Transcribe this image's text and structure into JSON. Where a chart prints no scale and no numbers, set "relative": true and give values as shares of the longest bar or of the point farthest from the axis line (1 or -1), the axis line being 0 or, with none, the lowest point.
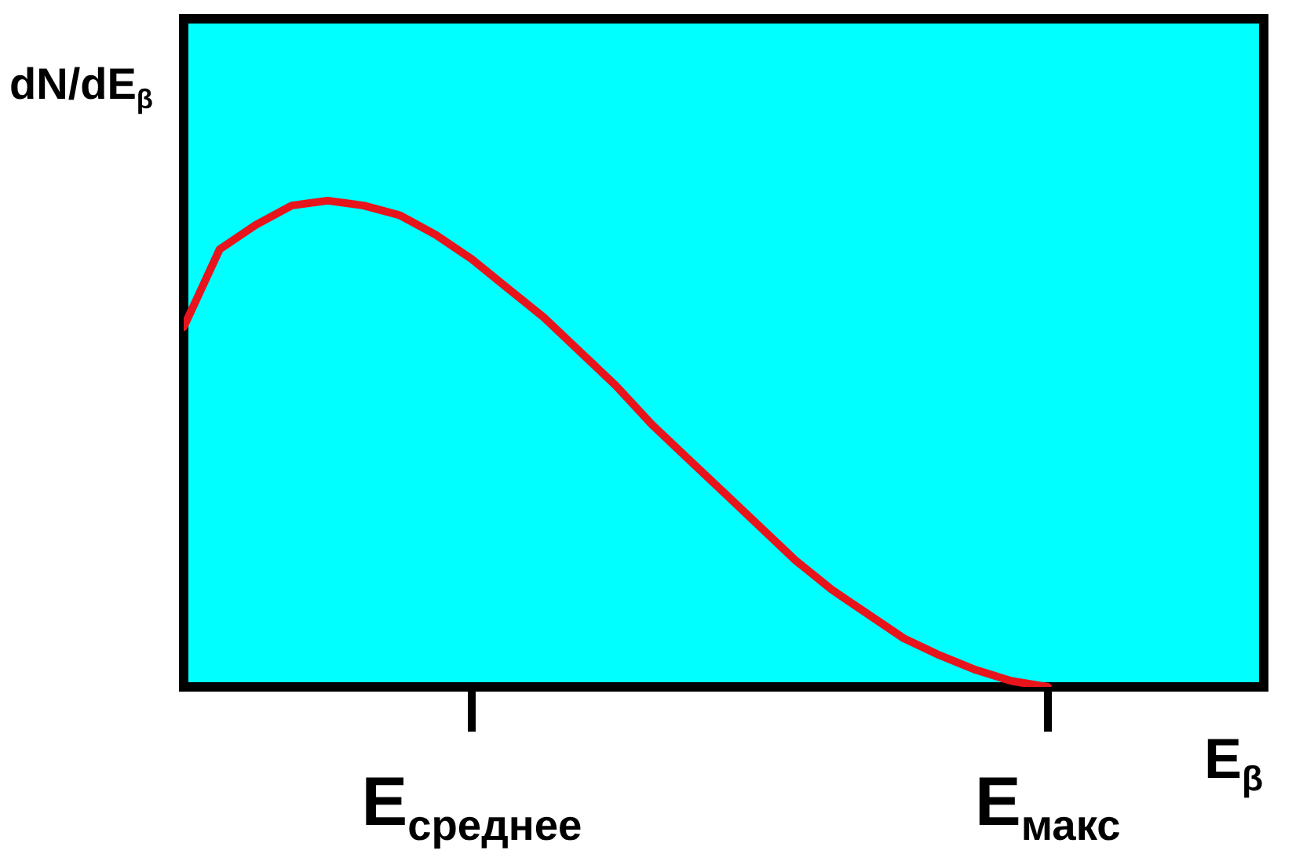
{
  "chart_data": {
    "type": "line",
    "relative": true,
    "xlabel": "E$_{β}$",
    "ylabel": "dN/dE$_{β}$",
    "categories": [
      null,
      null,
      null,
      null,
      null,
      null,
      null,
      null,
      "E$_{среднее}$",
      null,
      null,
      null,
      null,
      null,
      null,
      null,
      null,
      null,
      null,
      null,
      null,
      null,
      null,
      null,
      "E$_{макс}$",
      null,
      null,
      null,
      null,
      null,
      null
    ],
    "series": [
      {
        "color": "#e8141c",
        "values": [
          0.74,
          0.9,
          0.95,
          0.99,
          1,
          0.99,
          0.97,
          0.93,
          0.88,
          0.82,
          0.76,
          0.69,
          0.62,
          0.54,
          0.47,
          0.4,
          0.33,
          0.26,
          0.2,
          0.15,
          0.1,
          0.065,
          0.035,
          0.012,
          0,
          null,
          null,
          null,
          null,
          null,
          null
        ]
      }
    ]
  }
}
